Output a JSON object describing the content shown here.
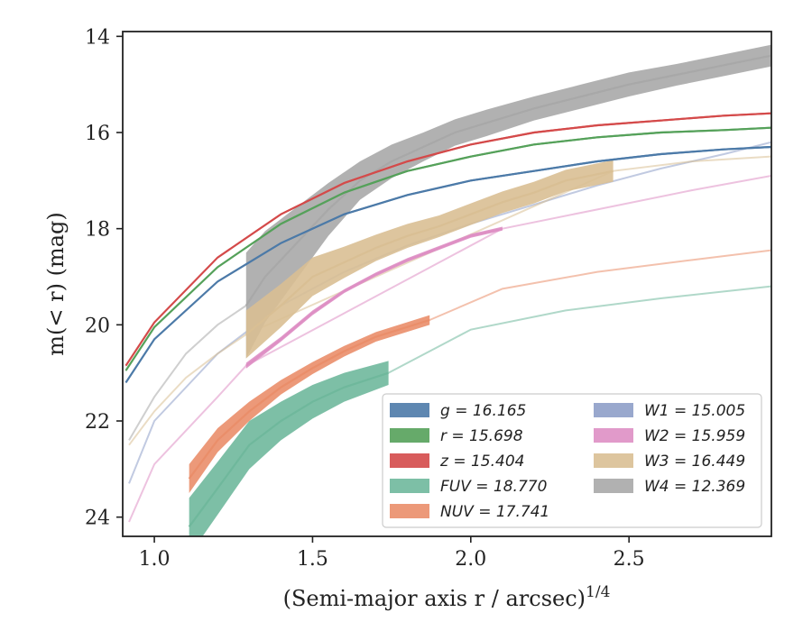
{
  "chart_data": {
    "type": "line",
    "xlabel": "(Semi-major axis r / arcsec)",
    "xlabel_superscript": "1/4",
    "ylabel": "m(< r) (mag)",
    "xlim": [
      0.9,
      2.95
    ],
    "ylim": [
      24.4,
      13.9
    ],
    "y_inverted": true,
    "xticks": [
      "1.0",
      "1.5",
      "2.0",
      "2.5"
    ],
    "yticks": [
      "14",
      "16",
      "18",
      "20",
      "22",
      "24"
    ],
    "legend_position": "lower-right",
    "legend_columns": 2,
    "series": [
      {
        "name": "g = 16.165",
        "label": "g",
        "value": "16.165",
        "color": "#4c7aa8",
        "band": {
          "x": [
            0.91,
            1.0,
            1.2,
            1.4,
            1.6,
            1.8,
            2.0,
            2.2,
            2.4,
            2.6,
            2.8,
            2.95
          ],
          "y": [
            21.2,
            20.3,
            19.1,
            18.3,
            17.7,
            17.3,
            17.0,
            16.8,
            16.6,
            16.45,
            16.35,
            16.3
          ],
          "width": [
            0.04,
            0.04,
            0.04,
            0.04,
            0.04,
            0.04,
            0.04,
            0.04,
            0.04,
            0.04,
            0.04,
            0.04
          ]
        },
        "extrapolation": null
      },
      {
        "name": "r = 15.698",
        "label": "r",
        "value": "15.698",
        "color": "#55a15a",
        "band": {
          "x": [
            0.91,
            1.0,
            1.2,
            1.4,
            1.6,
            1.8,
            2.0,
            2.2,
            2.4,
            2.6,
            2.8,
            2.95
          ],
          "y": [
            20.95,
            20.05,
            18.8,
            17.9,
            17.25,
            16.8,
            16.5,
            16.25,
            16.1,
            16.0,
            15.95,
            15.9
          ],
          "width": [
            0.04,
            0.04,
            0.04,
            0.04,
            0.04,
            0.04,
            0.04,
            0.04,
            0.04,
            0.04,
            0.04,
            0.04
          ]
        },
        "extrapolation": null
      },
      {
        "name": "z = 15.404",
        "label": "z",
        "value": "15.404",
        "color": "#d44a4a",
        "band": {
          "x": [
            0.91,
            1.0,
            1.2,
            1.4,
            1.6,
            1.8,
            2.0,
            2.2,
            2.4,
            2.6,
            2.8,
            2.95
          ],
          "y": [
            20.85,
            19.95,
            18.6,
            17.7,
            17.05,
            16.6,
            16.25,
            16.0,
            15.85,
            15.75,
            15.65,
            15.6
          ],
          "width": [
            0.04,
            0.04,
            0.04,
            0.04,
            0.04,
            0.04,
            0.04,
            0.04,
            0.04,
            0.04,
            0.04,
            0.04
          ]
        },
        "extrapolation": null
      },
      {
        "name": "FUV = 18.770",
        "label": "FUV",
        "value": "18.770",
        "color": "#6fb89c",
        "band": {
          "x": [
            1.11,
            1.2,
            1.3,
            1.4,
            1.5,
            1.6,
            1.74
          ],
          "y": [
            24.2,
            23.4,
            22.5,
            22.0,
            21.6,
            21.3,
            21.0
          ],
          "width": [
            1.2,
            1.1,
            1.0,
            0.8,
            0.7,
            0.6,
            0.5
          ]
        },
        "extrapolation": {
          "x": [
            1.74,
            2.0,
            2.3,
            2.6,
            2.95
          ],
          "y": [
            21.0,
            20.1,
            19.7,
            19.45,
            19.2
          ]
        }
      },
      {
        "name": "NUV = 17.741",
        "label": "NUV",
        "value": "17.741",
        "color": "#ea8e6a",
        "band": {
          "x": [
            1.11,
            1.2,
            1.3,
            1.4,
            1.5,
            1.6,
            1.7,
            1.87
          ],
          "y": [
            23.2,
            22.4,
            21.8,
            21.3,
            20.9,
            20.55,
            20.25,
            19.9
          ],
          "width": [
            0.6,
            0.5,
            0.4,
            0.3,
            0.25,
            0.22,
            0.2,
            0.2
          ]
        },
        "extrapolation": {
          "x": [
            1.87,
            2.1,
            2.4,
            2.7,
            2.95
          ],
          "y": [
            19.9,
            19.25,
            18.9,
            18.65,
            18.45
          ]
        }
      },
      {
        "name": "W1 = 15.005",
        "label": "W1",
        "value": "15.005",
        "color": "#8e9ec8",
        "band": null,
        "extrapolation": {
          "x": [
            0.92,
            1.0,
            1.2,
            1.4,
            1.6,
            1.8,
            2.0,
            2.2,
            2.4,
            2.6,
            2.8,
            2.95
          ],
          "y": [
            23.3,
            22.0,
            20.6,
            19.6,
            18.9,
            18.35,
            17.9,
            17.5,
            17.1,
            16.75,
            16.45,
            16.2
          ]
        }
      },
      {
        "name": "W2 = 15.959",
        "label": "W2",
        "value": "15.959",
        "color": "#de8fc4",
        "band": {
          "x": [
            1.29,
            1.4,
            1.5,
            1.6,
            1.7,
            1.8,
            1.9,
            2.0,
            2.1
          ],
          "y": [
            20.85,
            20.3,
            19.75,
            19.3,
            18.95,
            18.65,
            18.4,
            18.15,
            18.0
          ],
          "width": [
            0.12,
            0.1,
            0.1,
            0.08,
            0.08,
            0.08,
            0.08,
            0.08,
            0.08
          ]
        },
        "extrapolation": {
          "x": [
            0.92,
            1.0,
            1.2,
            1.29,
            2.1,
            2.4,
            2.7,
            2.95
          ],
          "y": [
            24.1,
            22.9,
            21.5,
            20.85,
            18.0,
            17.6,
            17.2,
            16.9
          ]
        }
      },
      {
        "name": "W3 = 16.449",
        "label": "W3",
        "value": "16.449",
        "color": "#d9bf94",
        "band": {
          "x": [
            1.29,
            1.4,
            1.5,
            1.6,
            1.7,
            1.8,
            1.9,
            2.0,
            2.1,
            2.2,
            2.3,
            2.45
          ],
          "y": [
            20.2,
            19.6,
            19.0,
            18.7,
            18.4,
            18.15,
            17.95,
            17.7,
            17.45,
            17.25,
            17.0,
            16.8
          ],
          "width": [
            1.0,
            0.9,
            0.8,
            0.65,
            0.55,
            0.5,
            0.45,
            0.45,
            0.45,
            0.45,
            0.45,
            0.45
          ]
        },
        "extrapolation": {
          "x": [
            0.92,
            1.0,
            1.1,
            1.2,
            1.29,
            2.45,
            2.7,
            2.95
          ],
          "y": [
            22.5,
            21.8,
            21.1,
            20.6,
            20.2,
            16.8,
            16.6,
            16.5
          ]
        }
      },
      {
        "name": "W4 = 12.369",
        "label": "W4",
        "value": "12.369",
        "color": "#a8a8a8",
        "band": {
          "x": [
            1.29,
            1.35,
            1.45,
            1.55,
            1.65,
            1.75,
            1.85,
            1.95,
            2.05,
            2.2,
            2.35,
            2.5,
            2.65,
            2.8,
            2.95
          ],
          "y": [
            19.6,
            19.0,
            18.3,
            17.6,
            17.0,
            16.6,
            16.3,
            16.0,
            15.8,
            15.5,
            15.25,
            15.0,
            14.8,
            14.6,
            14.4
          ],
          "width": [
            2.2,
            1.9,
            1.5,
            1.1,
            0.8,
            0.7,
            0.6,
            0.55,
            0.55,
            0.5,
            0.5,
            0.5,
            0.45,
            0.45,
            0.45
          ]
        },
        "extrapolation": {
          "x": [
            0.92,
            1.0,
            1.1,
            1.2,
            1.29
          ],
          "y": [
            22.4,
            21.5,
            20.6,
            20.0,
            19.6
          ]
        }
      }
    ]
  }
}
